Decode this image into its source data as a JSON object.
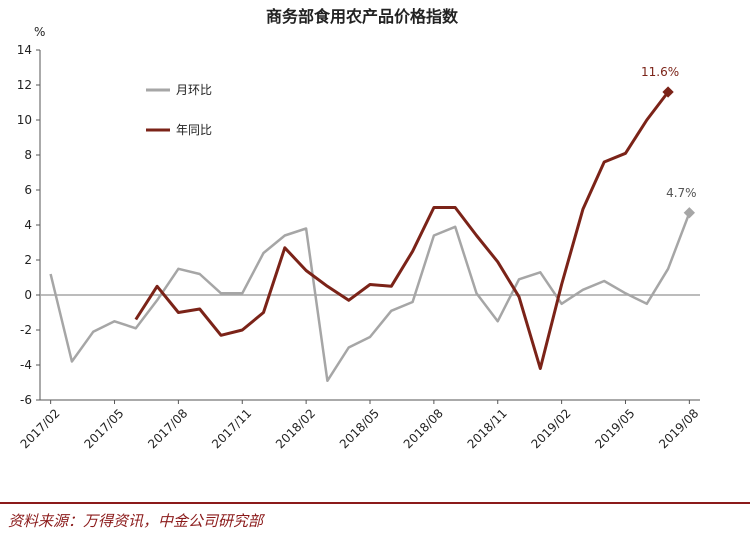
{
  "chart_data": {
    "type": "line",
    "title": "商务部食用农产品价格指数",
    "ylabel": "%",
    "ylim": [
      -6,
      14
    ],
    "yticks": [
      -6,
      -4,
      -2,
      0,
      2,
      4,
      6,
      8,
      10,
      12,
      14
    ],
    "x_categories": [
      "2017/02",
      "2017/03",
      "2017/04",
      "2017/05",
      "2017/06",
      "2017/07",
      "2017/08",
      "2017/09",
      "2017/10",
      "2017/11",
      "2017/12",
      "2018/01",
      "2018/02",
      "2018/03",
      "2018/04",
      "2018/05",
      "2018/06",
      "2018/07",
      "2018/08",
      "2018/09",
      "2018/10",
      "2018/11",
      "2018/12",
      "2019/01",
      "2019/02",
      "2019/03",
      "2019/04",
      "2019/05",
      "2019/06",
      "2019/07",
      "2019/08"
    ],
    "x_tick_labels": [
      "2017/02",
      "2017/05",
      "2017/08",
      "2017/11",
      "2018/02",
      "2018/05",
      "2018/08",
      "2018/11",
      "2019/02",
      "2019/05",
      "2019/08"
    ],
    "legend_position": "top-left",
    "grid": false,
    "series": [
      {
        "name": "月环比",
        "color": "#a6a6a6",
        "values": [
          1.2,
          -3.8,
          -2.1,
          -1.5,
          -1.9,
          -0.3,
          1.5,
          1.2,
          0.1,
          0.1,
          2.4,
          3.4,
          3.8,
          -4.9,
          -3.0,
          -2.4,
          -0.9,
          -0.4,
          3.4,
          3.9,
          0.1,
          -1.5,
          0.9,
          1.3,
          -0.5,
          0.3,
          0.8,
          0.1,
          -0.5,
          1.5,
          4.7
        ]
      },
      {
        "name": "年同比",
        "color": "#7b2318",
        "values": [
          null,
          null,
          null,
          null,
          -1.4,
          0.5,
          -1.0,
          -0.8,
          -2.3,
          -2.0,
          -1.0,
          2.7,
          1.4,
          0.5,
          -0.3,
          0.6,
          0.5,
          2.5,
          5.0,
          5.0,
          3.4,
          1.9,
          -0.1,
          -4.2,
          0.6,
          4.9,
          7.6,
          8.1,
          10.0,
          11.6,
          null
        ]
      }
    ],
    "annotations": [
      {
        "series": "年同比",
        "label": "11.6%",
        "color": "#7b2318"
      },
      {
        "series": "月环比",
        "label": "4.7%",
        "color": "#555555"
      }
    ]
  },
  "source_text": "资料来源：万得资讯，中金公司研究部"
}
